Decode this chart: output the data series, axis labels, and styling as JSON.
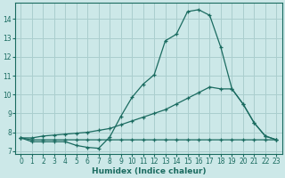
{
  "xlabel": "Humidex (Indice chaleur)",
  "bg_color": "#cce8e8",
  "grid_color": "#aacece",
  "line_color": "#1a6b60",
  "xlim": [
    -0.5,
    23.5
  ],
  "ylim": [
    6.85,
    14.85
  ],
  "yticks": [
    7,
    8,
    9,
    10,
    11,
    12,
    13,
    14
  ],
  "xticks": [
    0,
    1,
    2,
    3,
    4,
    5,
    6,
    7,
    8,
    9,
    10,
    11,
    12,
    13,
    14,
    15,
    16,
    17,
    18,
    19,
    20,
    21,
    22,
    23
  ],
  "curve1_x": [
    0,
    1,
    2,
    3,
    4,
    5,
    6,
    7,
    8,
    9,
    10,
    11,
    12,
    13,
    14,
    15,
    16,
    17,
    18,
    19,
    20,
    21,
    22,
    23
  ],
  "curve1_y": [
    7.7,
    7.5,
    7.5,
    7.5,
    7.5,
    7.3,
    7.2,
    7.15,
    7.75,
    8.85,
    9.85,
    10.55,
    11.05,
    12.85,
    13.2,
    14.4,
    14.5,
    14.2,
    12.5,
    10.3,
    9.5,
    8.5,
    7.8,
    7.6
  ],
  "curve2_x": [
    0,
    1,
    2,
    3,
    4,
    5,
    6,
    7,
    8,
    9,
    10,
    11,
    12,
    13,
    14,
    15,
    16,
    17,
    18,
    19,
    20,
    21,
    22,
    23
  ],
  "curve2_y": [
    7.7,
    7.7,
    7.8,
    7.85,
    7.9,
    7.95,
    8.0,
    8.1,
    8.2,
    8.4,
    8.6,
    8.8,
    9.0,
    9.2,
    9.5,
    9.8,
    10.1,
    10.4,
    10.3,
    10.3,
    9.5,
    8.5,
    7.8,
    7.6
  ],
  "curve3_x": [
    0,
    1,
    2,
    3,
    4,
    5,
    6,
    7,
    8,
    9,
    10,
    11,
    12,
    13,
    14,
    15,
    16,
    17,
    18,
    19,
    20,
    21,
    22,
    23
  ],
  "curve3_y": [
    7.7,
    7.6,
    7.6,
    7.6,
    7.6,
    7.6,
    7.6,
    7.6,
    7.6,
    7.6,
    7.6,
    7.6,
    7.6,
    7.6,
    7.6,
    7.6,
    7.6,
    7.6,
    7.6,
    7.6,
    7.6,
    7.6,
    7.6,
    7.6
  ]
}
